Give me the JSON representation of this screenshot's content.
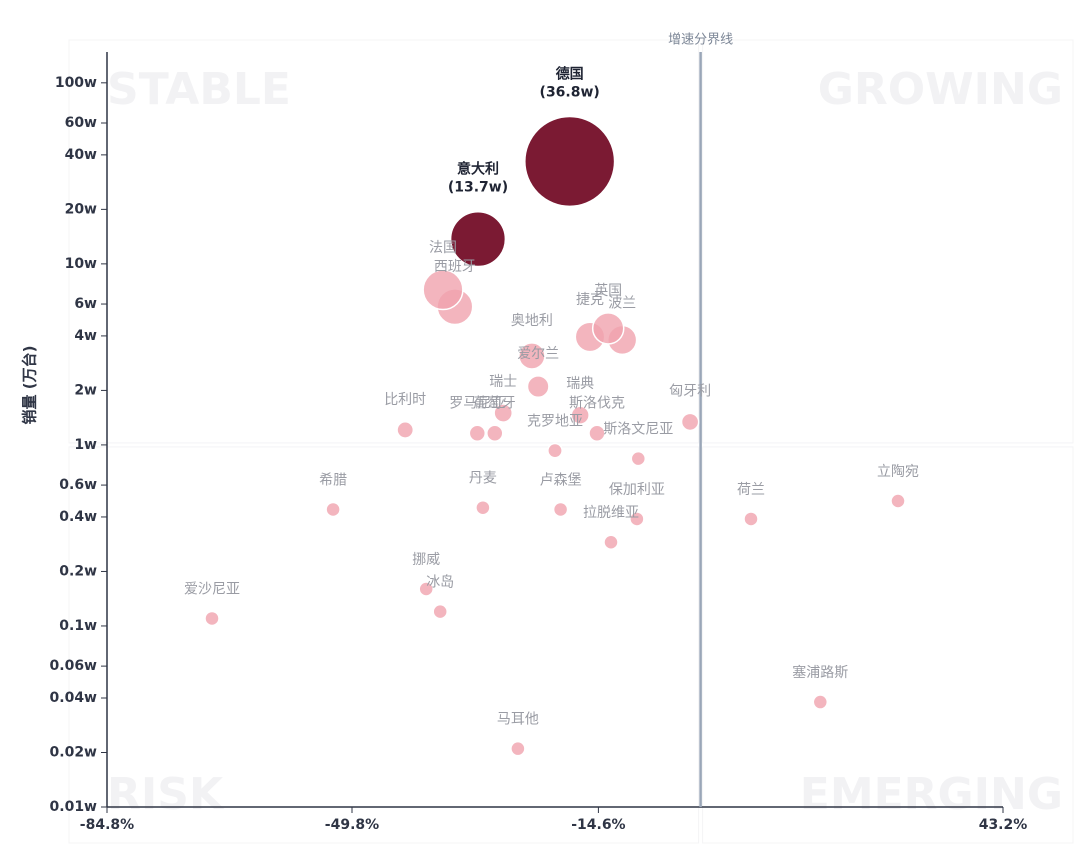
{
  "chart_data": {
    "type": "bubble",
    "y_label": "销量 (万台)",
    "xlim": [
      -84.8,
      43.2
    ],
    "xticks": [
      {
        "value": -84.8,
        "label": "-84.8%"
      },
      {
        "value": -49.8,
        "label": "-49.8%"
      },
      {
        "value": -14.6,
        "label": "-14.6%"
      },
      {
        "value": 43.2,
        "label": "43.2%"
      }
    ],
    "ylim": [
      0.01,
      148
    ],
    "log_y": true,
    "yticks": [
      {
        "value": 0.01,
        "label": "0.01w"
      },
      {
        "value": 0.02,
        "label": "0.02w"
      },
      {
        "value": 0.04,
        "label": "0.04w"
      },
      {
        "value": 0.06,
        "label": "0.06w"
      },
      {
        "value": 0.1,
        "label": "0.1w"
      },
      {
        "value": 0.2,
        "label": "0.2w"
      },
      {
        "value": 0.4,
        "label": "0.4w"
      },
      {
        "value": 0.6,
        "label": "0.6w"
      },
      {
        "value": 1,
        "label": "1w"
      },
      {
        "value": 2,
        "label": "2w"
      },
      {
        "value": 4,
        "label": "4w"
      },
      {
        "value": 6,
        "label": "6w"
      },
      {
        "value": 10,
        "label": "10w"
      },
      {
        "value": 20,
        "label": "20w"
      },
      {
        "value": 40,
        "label": "40w"
      },
      {
        "value": 60,
        "label": "60w"
      },
      {
        "value": 100,
        "label": "100w"
      }
    ],
    "divider": {
      "x": 0,
      "label": "增速分界线",
      "color": "#9aa6b8"
    },
    "quadrants": [
      "STABLE",
      "GROWING",
      "RISK",
      "EMERGING"
    ],
    "highlight_color": "#7b1a33",
    "color": "#f0a3ae",
    "points": [
      {
        "name": "德国",
        "x": -18.7,
        "y": 36.8,
        "value_label": "(36.8w)",
        "highlight": true
      },
      {
        "name": "意大利",
        "x": -31.8,
        "y": 13.7,
        "value_label": "(13.7w)",
        "highlight": true
      },
      {
        "name": "法国",
        "x": -36.8,
        "y": 7.2
      },
      {
        "name": "西班牙",
        "x": -35.1,
        "y": 5.8
      },
      {
        "name": "英国",
        "x": -13.2,
        "y": 4.4
      },
      {
        "name": "捷克",
        "x": -15.8,
        "y": 3.95
      },
      {
        "name": "波兰",
        "x": -11.2,
        "y": 3.8
      },
      {
        "name": "奥地利",
        "x": -24.1,
        "y": 3.1
      },
      {
        "name": "爱尔兰",
        "x": -23.2,
        "y": 2.1
      },
      {
        "name": "瑞士",
        "x": -28.2,
        "y": 1.5
      },
      {
        "name": "瑞典",
        "x": -17.2,
        "y": 1.46
      },
      {
        "name": "斯洛伐克",
        "x": -14.8,
        "y": 1.16
      },
      {
        "name": "比利时",
        "x": -42.2,
        "y": 1.21
      },
      {
        "name": "罗马尼亚",
        "x": -31.9,
        "y": 1.16
      },
      {
        "name": "葡萄牙",
        "x": -29.4,
        "y": 1.16
      },
      {
        "name": "克罗地亚",
        "x": -20.8,
        "y": 0.93
      },
      {
        "name": "斯洛文尼亚",
        "x": -8.9,
        "y": 0.84
      },
      {
        "name": "匈牙利",
        "x": -1.5,
        "y": 1.34
      },
      {
        "name": "希腊",
        "x": -52.5,
        "y": 0.44
      },
      {
        "name": "丹麦",
        "x": -31.1,
        "y": 0.45
      },
      {
        "name": "卢森堡",
        "x": -20.0,
        "y": 0.44
      },
      {
        "name": "保加利亚",
        "x": -9.1,
        "y": 0.39
      },
      {
        "name": "拉脱维亚",
        "x": -12.8,
        "y": 0.29
      },
      {
        "name": "荷兰",
        "x": 7.2,
        "y": 0.39
      },
      {
        "name": "立陶宛",
        "x": 28.2,
        "y": 0.49
      },
      {
        "name": "挪威",
        "x": -39.2,
        "y": 0.16
      },
      {
        "name": "冰岛",
        "x": -37.2,
        "y": 0.12
      },
      {
        "name": "爱沙尼亚",
        "x": -69.8,
        "y": 0.11
      },
      {
        "name": "塞浦路斯",
        "x": 17.1,
        "y": 0.038
      },
      {
        "name": "马耳他",
        "x": -26.1,
        "y": 0.021
      }
    ]
  }
}
